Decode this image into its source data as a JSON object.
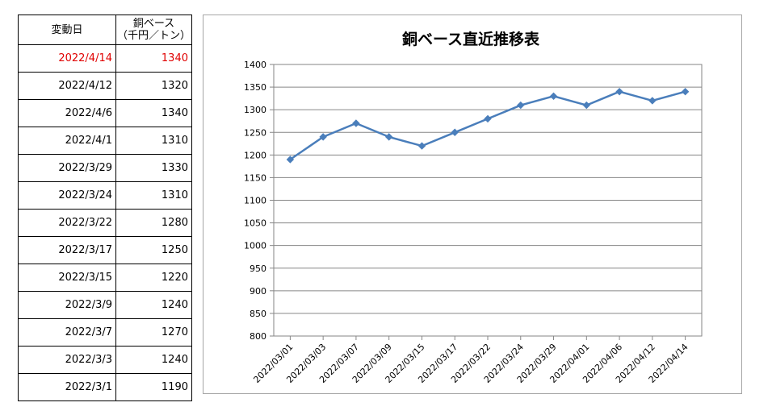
{
  "table": {
    "header_date": "変動日",
    "header_price_line1": "銅ベース",
    "header_price_line2": "（千円／トン）",
    "rows": [
      {
        "date": "2022/4/14",
        "price": "1340"
      },
      {
        "date": "2022/4/12",
        "price": "1320"
      },
      {
        "date": "2022/4/6",
        "price": "1340"
      },
      {
        "date": "2022/4/1",
        "price": "1310"
      },
      {
        "date": "2022/3/29",
        "price": "1330"
      },
      {
        "date": "2022/3/24",
        "price": "1310"
      },
      {
        "date": "2022/3/22",
        "price": "1280"
      },
      {
        "date": "2022/3/17",
        "price": "1250"
      },
      {
        "date": "2022/3/15",
        "price": "1220"
      },
      {
        "date": "2022/3/9",
        "price": "1240"
      },
      {
        "date": "2022/3/7",
        "price": "1270"
      },
      {
        "date": "2022/3/3",
        "price": "1240"
      },
      {
        "date": "2022/3/1",
        "price": "1190"
      }
    ],
    "highlight_color": "#e00000"
  },
  "chart_data": {
    "type": "line",
    "title": "銅ベース直近推移表",
    "xlabel": "",
    "ylabel": "",
    "x": [
      "2022/03/01",
      "2022/03/03",
      "2022/03/07",
      "2022/03/09",
      "2022/03/15",
      "2022/03/17",
      "2022/03/22",
      "2022/03/24",
      "2022/03/29",
      "2022/04/01",
      "2022/04/06",
      "2022/04/12",
      "2022/04/14"
    ],
    "series": [
      {
        "values": [
          1190,
          1240,
          1270,
          1240,
          1220,
          1250,
          1280,
          1310,
          1330,
          1310,
          1340,
          1320,
          1340
        ],
        "color": "#4a7ebb"
      }
    ],
    "ylim": [
      800,
      1400
    ],
    "yticks": [
      800,
      850,
      900,
      950,
      1000,
      1050,
      1100,
      1150,
      1200,
      1250,
      1300,
      1350,
      1400
    ],
    "grid": true,
    "legend": "none"
  }
}
